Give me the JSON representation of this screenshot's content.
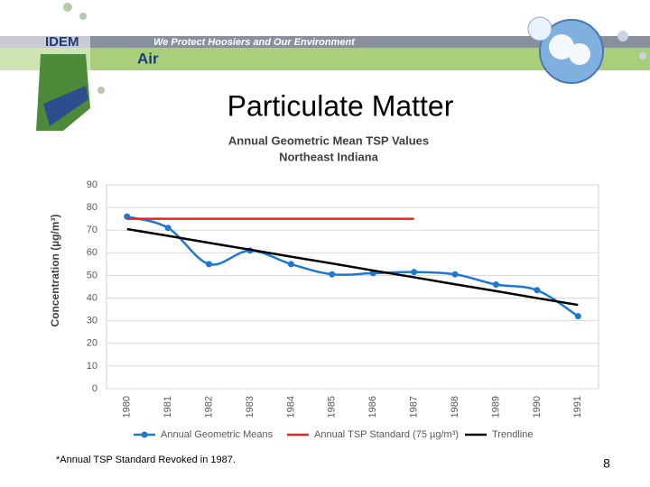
{
  "header": {
    "logo": "IDEM",
    "slogan": "We Protect Hoosiers and Our Environment",
    "section": "Air"
  },
  "slide_title": "Particulate Matter",
  "chart_data": {
    "type": "line",
    "title": [
      "Annual Geometric Mean TSP Values",
      "Northeast Indiana"
    ],
    "y_label": "Concentration (µg/m³)",
    "categories": [
      "1980",
      "1981",
      "1982",
      "1983",
      "1984",
      "1985",
      "1986",
      "1987",
      "1988",
      "1989",
      "1990",
      "1991"
    ],
    "series": [
      {
        "name": "Annual Geometric Means",
        "color": "#1f77d4",
        "markers": true,
        "smooth": true,
        "values": [
          76,
          71,
          55,
          61,
          55,
          50.5,
          51,
          51.5,
          50.5,
          46,
          43.5,
          32
        ]
      },
      {
        "name": "Annual TSP Standard (75 µg/m³)",
        "color": "#e8231f",
        "markers": false,
        "smooth": false,
        "values": [
          75,
          75,
          75,
          75,
          75,
          75,
          75,
          75,
          null,
          null,
          null,
          null
        ]
      },
      {
        "name": "Trendline",
        "color": "#000000",
        "markers": false,
        "smooth": false,
        "values": [
          70.5,
          67.5,
          64.4,
          61.4,
          58.3,
          55.3,
          52.2,
          49.2,
          46.1,
          43.1,
          40.0,
          37.0
        ]
      }
    ],
    "ylim": [
      0,
      90
    ],
    "yticks": [
      0,
      10,
      20,
      30,
      40,
      50,
      60,
      70,
      80,
      90
    ],
    "grid": true,
    "legend": "bottom"
  },
  "footnote": "*Annual TSP Standard Revoked in 1987.",
  "page_number": "8"
}
